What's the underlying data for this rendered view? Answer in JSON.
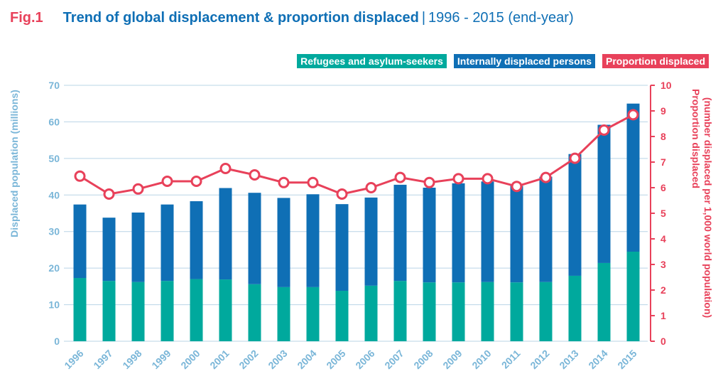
{
  "header": {
    "fig_label": "Fig.1",
    "title": "Trend of global displacement & proportion displaced",
    "separator": "|",
    "subtitle": "1996 - 2015 (end-year)"
  },
  "legend": [
    {
      "label": "Refugees and asylum-seekers",
      "color": "#00a99d"
    },
    {
      "label": "Internally displaced persons",
      "color": "#0f6fb5"
    },
    {
      "label": "Proportion displaced",
      "color": "#e8415a"
    }
  ],
  "chart_data": {
    "type": "bar",
    "stacked": true,
    "title": "Trend of global displacement & proportion displaced",
    "categories": [
      "1996",
      "1997",
      "1998",
      "1999",
      "2000",
      "2001",
      "2002",
      "2003",
      "2004",
      "2005",
      "2006",
      "2007",
      "2008",
      "2009",
      "2010",
      "2011",
      "2012",
      "2013",
      "2014",
      "2015"
    ],
    "series": [
      {
        "name": "Refugees and asylum-seekers",
        "color": "#00a99d",
        "axis": "left",
        "values": [
          17.3,
          16.5,
          16.2,
          16.5,
          17.0,
          16.9,
          15.6,
          14.8,
          14.8,
          13.8,
          15.2,
          16.5,
          16.1,
          16.1,
          16.2,
          16.1,
          16.2,
          17.9,
          21.4,
          24.5
        ]
      },
      {
        "name": "Internally displaced persons",
        "color": "#0f6fb5",
        "axis": "left",
        "values": [
          20.1,
          17.3,
          19.0,
          20.9,
          21.3,
          25.0,
          25.0,
          24.4,
          25.4,
          23.7,
          24.1,
          26.3,
          25.9,
          27.1,
          27.5,
          26.4,
          28.8,
          33.3,
          37.8,
          40.5
        ]
      },
      {
        "name": "Proportion displaced",
        "type": "line",
        "color": "#e8415a",
        "axis": "right",
        "values": [
          6.45,
          5.75,
          5.95,
          6.25,
          6.25,
          6.75,
          6.5,
          6.2,
          6.2,
          5.75,
          6.0,
          6.4,
          6.2,
          6.35,
          6.35,
          6.05,
          6.4,
          7.15,
          8.25,
          8.85
        ]
      }
    ],
    "left_axis": {
      "label": "Displaced population (millions)",
      "ylim": [
        0,
        70
      ],
      "ticks": [
        "0",
        "10",
        "20",
        "30",
        "40",
        "50",
        "60",
        "70"
      ]
    },
    "right_axis": {
      "label_line1": "Proportion displaced",
      "label_line2": "(number displaced per 1,000 world population)",
      "ylim": [
        0,
        10
      ],
      "ticks": [
        "0",
        "1",
        "2",
        "3",
        "4",
        "5",
        "6",
        "7",
        "8",
        "9",
        "10"
      ]
    },
    "grid": true,
    "legend_position": "top-right"
  }
}
